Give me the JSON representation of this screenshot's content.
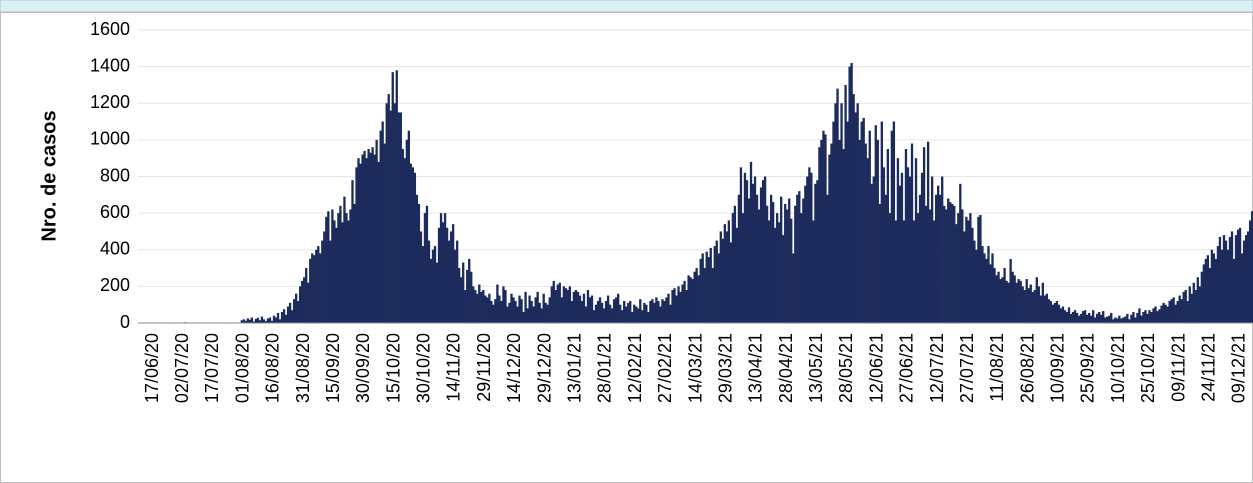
{
  "chart_data": {
    "type": "bar",
    "y_label": "Nro. de casos",
    "color": "#1c2a5c",
    "ylim": [
      0,
      1600
    ],
    "yticks": [
      0,
      200,
      400,
      600,
      800,
      1000,
      1200,
      1400,
      1600
    ],
    "grid": true,
    "categories": [
      null,
      null,
      null,
      null,
      null,
      null,
      null,
      "17/06/20",
      null,
      null,
      null,
      null,
      null,
      null,
      null,
      null,
      null,
      null,
      null,
      null,
      null,
      null,
      "02/07/20",
      null,
      null,
      null,
      null,
      null,
      null,
      null,
      null,
      null,
      null,
      null,
      null,
      null,
      null,
      "17/07/20",
      null,
      null,
      null,
      null,
      null,
      null,
      null,
      null,
      null,
      null,
      null,
      null,
      null,
      null,
      "01/08/20",
      null,
      null,
      null,
      null,
      null,
      null,
      null,
      null,
      null,
      null,
      null,
      null,
      null,
      null,
      "16/08/20",
      null,
      null,
      null,
      null,
      null,
      null,
      null,
      null,
      null,
      null,
      null,
      null,
      null,
      null,
      "31/08/20",
      null,
      null,
      null,
      null,
      null,
      null,
      null,
      null,
      null,
      null,
      null,
      null,
      null,
      null,
      "15/09/20",
      null,
      null,
      null,
      null,
      null,
      null,
      null,
      null,
      null,
      null,
      null,
      null,
      null,
      null,
      "30/09/20",
      null,
      null,
      null,
      null,
      null,
      null,
      null,
      null,
      null,
      null,
      null,
      null,
      null,
      null,
      "15/10/20",
      null,
      null,
      null,
      null,
      null,
      null,
      null,
      null,
      null,
      null,
      null,
      null,
      null,
      null,
      "30/10/20",
      null,
      null,
      null,
      null,
      null,
      null,
      null,
      null,
      null,
      null,
      null,
      null,
      null,
      null,
      "14/11/20",
      null,
      null,
      null,
      null,
      null,
      null,
      null,
      null,
      null,
      null,
      null,
      null,
      null,
      null,
      "29/11/20",
      null,
      null,
      null,
      null,
      null,
      null,
      null,
      null,
      null,
      null,
      null,
      null,
      null,
      null,
      "14/12/20",
      null,
      null,
      null,
      null,
      null,
      null,
      null,
      null,
      null,
      null,
      null,
      null,
      null,
      null,
      "29/12/20",
      null,
      null,
      null,
      null,
      null,
      null,
      null,
      null,
      null,
      null,
      null,
      null,
      null,
      null,
      "13/01/21",
      null,
      null,
      null,
      null,
      null,
      null,
      null,
      null,
      null,
      null,
      null,
      null,
      null,
      null,
      "28/01/21",
      null,
      null,
      null,
      null,
      null,
      null,
      null,
      null,
      null,
      null,
      null,
      null,
      null,
      null,
      "12/02/21",
      null,
      null,
      null,
      null,
      null,
      null,
      null,
      null,
      null,
      null,
      null,
      null,
      null,
      null,
      "27/02/21",
      null,
      null,
      null,
      null,
      null,
      null,
      null,
      null,
      null,
      null,
      null,
      null,
      null,
      null,
      "14/03/21",
      null,
      null,
      null,
      null,
      null,
      null,
      null,
      null,
      null,
      null,
      null,
      null,
      null,
      null,
      "29/03/21",
      null,
      null,
      null,
      null,
      null,
      null,
      null,
      null,
      null,
      null,
      null,
      null,
      null,
      null,
      "13/04/21",
      null,
      null,
      null,
      null,
      null,
      null,
      null,
      null,
      null,
      null,
      null,
      null,
      null,
      null,
      "28/04/21",
      null,
      null,
      null,
      null,
      null,
      null,
      null,
      null,
      null,
      null,
      null,
      null,
      null,
      null,
      "13/05/21",
      null,
      null,
      null,
      null,
      null,
      null,
      null,
      null,
      null,
      null,
      null,
      null,
      null,
      null,
      "28/05/21",
      null,
      null,
      null,
      null,
      null,
      null,
      null,
      null,
      null,
      null,
      null,
      null,
      null,
      null,
      "12/06/21",
      null,
      null,
      null,
      null,
      null,
      null,
      null,
      null,
      null,
      null,
      null,
      null,
      null,
      null,
      "27/06/21",
      null,
      null,
      null,
      null,
      null,
      null,
      null,
      null,
      null,
      null,
      null,
      null,
      null,
      null,
      "12/07/21",
      null,
      null,
      null,
      null,
      null,
      null,
      null,
      null,
      null,
      null,
      null,
      null,
      null,
      null,
      "27/07/21",
      null,
      null,
      null,
      null,
      null,
      null,
      null,
      null,
      null,
      null,
      null,
      null,
      null,
      null,
      "11/08/21",
      null,
      null,
      null,
      null,
      null,
      null,
      null,
      null,
      null,
      null,
      null,
      null,
      null,
      null,
      "26/08/21",
      null,
      null,
      null,
      null,
      null,
      null,
      null,
      null,
      null,
      null,
      null,
      null,
      null,
      null,
      "10/09/21",
      null,
      null,
      null,
      null,
      null,
      null,
      null,
      null,
      null,
      null,
      null,
      null,
      null,
      null,
      "25/09/21",
      null,
      null,
      null,
      null,
      null,
      null,
      null,
      null,
      null,
      null,
      null,
      null,
      null,
      null,
      "10/10/21",
      null,
      null,
      null,
      null,
      null,
      null,
      null,
      null,
      null,
      null,
      null,
      null,
      null,
      null,
      "25/10/21",
      null,
      null,
      null,
      null,
      null,
      null,
      null,
      null,
      null,
      null,
      null,
      null,
      null,
      null,
      "09/11/21",
      null,
      null,
      null,
      null,
      null,
      null,
      null,
      null,
      null,
      null,
      null,
      null,
      null,
      null,
      "24/11/21",
      null,
      null,
      null,
      null,
      null,
      null,
      null,
      null,
      null,
      null,
      null,
      null,
      null,
      null,
      "09/12/21",
      null,
      null,
      null,
      null,
      null,
      null
    ],
    "values": [
      0,
      0,
      0,
      0,
      0,
      0,
      0,
      0,
      0,
      2,
      0,
      0,
      0,
      1,
      0,
      0,
      3,
      0,
      0,
      0,
      0,
      0,
      0,
      4,
      0,
      0,
      0,
      2,
      0,
      0,
      0,
      0,
      1,
      0,
      0,
      0,
      0,
      0,
      0,
      2,
      0,
      0,
      0,
      0,
      3,
      0,
      0,
      2,
      0,
      0,
      0,
      15,
      20,
      12,
      25,
      18,
      30,
      8,
      22,
      28,
      15,
      35,
      20,
      10,
      25,
      30,
      12,
      40,
      30,
      55,
      20,
      60,
      75,
      45,
      90,
      110,
      70,
      130,
      160,
      120,
      200,
      230,
      250,
      300,
      220,
      350,
      380,
      370,
      400,
      420,
      380,
      450,
      500,
      580,
      610,
      450,
      620,
      560,
      520,
      600,
      640,
      550,
      690,
      600,
      560,
      620,
      780,
      650,
      850,
      900,
      870,
      920,
      940,
      900,
      950,
      930,
      960,
      920,
      1000,
      880,
      1050,
      1100,
      980,
      1200,
      1250,
      1160,
      1370,
      1200,
      1380,
      1150,
      1150,
      950,
      900,
      1000,
      1050,
      870,
      850,
      820,
      700,
      650,
      500,
      420,
      600,
      640,
      450,
      350,
      400,
      420,
      330,
      520,
      600,
      550,
      600,
      520,
      450,
      500,
      540,
      400,
      450,
      300,
      250,
      330,
      180,
      290,
      350,
      280,
      200,
      180,
      160,
      210,
      170,
      180,
      150,
      140,
      160,
      120,
      100,
      130,
      210,
      150,
      120,
      200,
      180,
      90,
      110,
      160,
      140,
      120,
      90,
      150,
      130,
      60,
      170,
      80,
      150,
      120,
      90,
      140,
      170,
      110,
      80,
      160,
      110,
      100,
      140,
      200,
      230,
      180,
      210,
      220,
      140,
      200,
      190,
      180,
      200,
      120,
      170,
      180,
      170,
      150,
      120,
      160,
      90,
      180,
      140,
      150,
      70,
      100,
      120,
      140,
      110,
      80,
      120,
      150,
      100,
      80,
      130,
      140,
      160,
      100,
      70,
      120,
      90,
      110,
      120,
      60,
      100,
      90,
      80,
      130,
      70,
      110,
      100,
      60,
      120,
      130,
      110,
      140,
      120,
      90,
      130,
      120,
      140,
      160,
      100,
      180,
      190,
      150,
      200,
      170,
      210,
      230,
      180,
      260,
      250,
      240,
      280,
      300,
      260,
      350,
      380,
      300,
      390,
      360,
      410,
      300,
      420,
      450,
      380,
      500,
      460,
      540,
      500,
      560,
      440,
      600,
      640,
      520,
      700,
      850,
      600,
      820,
      780,
      680,
      880,
      760,
      800,
      700,
      620,
      740,
      780,
      800,
      640,
      560,
      700,
      660,
      520,
      600,
      550,
      690,
      480,
      650,
      620,
      680,
      570,
      380,
      640,
      700,
      720,
      600,
      680,
      750,
      800,
      850,
      820,
      560,
      760,
      780,
      960,
      1000,
      1050,
      1030,
      700,
      920,
      980,
      1100,
      1200,
      1280,
      1000,
      1200,
      950,
      1300,
      1100,
      1400,
      1420,
      1250,
      1150,
      1200,
      1000,
      1100,
      1120,
      980,
      900,
      1050,
      760,
      800,
      1080,
      1000,
      650,
      1100,
      850,
      700,
      950,
      600,
      1050,
      1100,
      560,
      900,
      750,
      820,
      560,
      950,
      850,
      800,
      980,
      560,
      900,
      600,
      700,
      820,
      960,
      640,
      990,
      620,
      800,
      560,
      700,
      750,
      700,
      800,
      640,
      620,
      680,
      660,
      650,
      640,
      540,
      600,
      760,
      620,
      500,
      580,
      560,
      600,
      520,
      450,
      400,
      580,
      590,
      420,
      380,
      350,
      420,
      320,
      380,
      300,
      260,
      280,
      240,
      250,
      300,
      230,
      220,
      350,
      280,
      260,
      220,
      240,
      230,
      200,
      180,
      240,
      190,
      210,
      170,
      180,
      250,
      200,
      150,
      220,
      150,
      160,
      130,
      120,
      100,
      110,
      120,
      100,
      80,
      90,
      70,
      60,
      85,
      50,
      60,
      70,
      55,
      40,
      50,
      65,
      70,
      45,
      55,
      40,
      70,
      30,
      50,
      60,
      45,
      65,
      30,
      35,
      40,
      55,
      20,
      30,
      25,
      40,
      25,
      30,
      35,
      50,
      20,
      45,
      60,
      30,
      55,
      80,
      40,
      60,
      70,
      50,
      70,
      60,
      80,
      90,
      65,
      75,
      95,
      110,
      100,
      90,
      120,
      130,
      140,
      100,
      120,
      150,
      130,
      170,
      180,
      120,
      200,
      160,
      220,
      180,
      250,
      200,
      280,
      320,
      350,
      370,
      300,
      400,
      380,
      350,
      420,
      470,
      400,
      480,
      450,
      400,
      470,
      500,
      350,
      480,
      510,
      520,
      380,
      450,
      480,
      500,
      560,
      610
    ]
  }
}
